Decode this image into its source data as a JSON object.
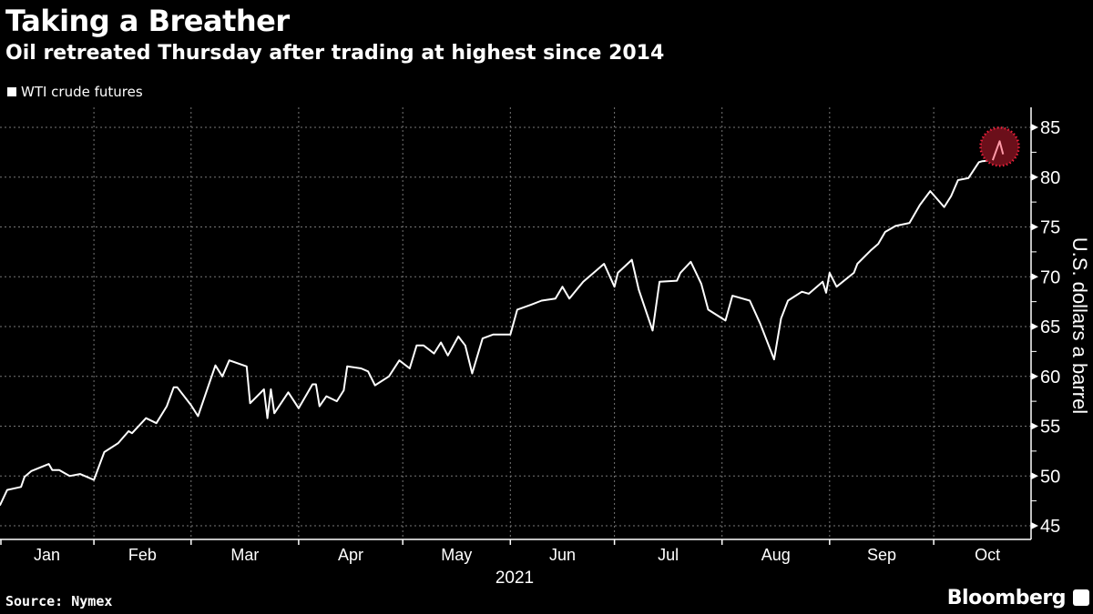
{
  "header": {
    "title": "Taking a Breather",
    "subtitle": "Oil retreated Thursday after trading at highest since 2014"
  },
  "footer": {
    "source": "Source: Nymex",
    "brand": "Bloomberg"
  },
  "colors": {
    "background": "#000000",
    "line": "#ffffff",
    "highlight_fill": "#6b0f1a",
    "highlight_border": "#e8203a",
    "highlight_line": "#ff9aa8"
  },
  "chart_data": {
    "type": "line",
    "title": "Taking a Breather",
    "subtitle": "Oil retreated Thursday after trading at highest since 2014",
    "xlabel": "2021",
    "ylabel": "U.S. dollars a barrel",
    "ylim": [
      45,
      85
    ],
    "yticks": [
      "45",
      "50",
      "55",
      "60",
      "65",
      "70",
      "75",
      "80",
      "85"
    ],
    "xticks": [
      "Jan",
      "Feb",
      "Mar",
      "Apr",
      "May",
      "Jun",
      "Jul",
      "Aug",
      "Sep",
      "Oct"
    ],
    "y_axis_side": "right",
    "grid": true,
    "legend_position": "top-left",
    "highlight": {
      "from": "2021-10-18",
      "to": "2021-10-21",
      "shape": "circle"
    },
    "series": [
      {
        "name": "WTI crude futures",
        "points": [
          [
            "2021-01-04",
            47.7
          ],
          [
            "2021-01-05",
            47.1
          ],
          [
            "2021-01-07",
            48.6
          ],
          [
            "2021-01-11",
            48.9
          ],
          [
            "2021-01-12",
            49.9
          ],
          [
            "2021-01-14",
            50.5
          ],
          [
            "2021-01-19",
            51.2
          ],
          [
            "2021-01-20",
            50.6
          ],
          [
            "2021-01-22",
            50.6
          ],
          [
            "2021-01-25",
            50.0
          ],
          [
            "2021-01-28",
            50.2
          ],
          [
            "2021-02-01",
            49.6
          ],
          [
            "2021-02-04",
            52.4
          ],
          [
            "2021-02-08",
            53.3
          ],
          [
            "2021-02-11",
            54.5
          ],
          [
            "2021-02-12",
            54.3
          ],
          [
            "2021-02-16",
            55.8
          ],
          [
            "2021-02-19",
            55.3
          ],
          [
            "2021-02-22",
            57.0
          ],
          [
            "2021-02-24",
            58.9
          ],
          [
            "2021-02-25",
            58.9
          ],
          [
            "2021-03-01",
            57.1
          ],
          [
            "2021-03-03",
            56.0
          ],
          [
            "2021-03-08",
            61.1
          ],
          [
            "2021-03-10",
            60.0
          ],
          [
            "2021-03-12",
            61.6
          ],
          [
            "2021-03-17",
            61.0
          ],
          [
            "2021-03-18",
            57.3
          ],
          [
            "2021-03-22",
            58.7
          ],
          [
            "2021-03-23",
            55.8
          ],
          [
            "2021-03-24",
            58.7
          ],
          [
            "2021-03-25",
            56.3
          ],
          [
            "2021-03-29",
            58.4
          ],
          [
            "2021-04-01",
            56.8
          ],
          [
            "2021-04-05",
            59.2
          ],
          [
            "2021-04-06",
            59.2
          ],
          [
            "2021-04-07",
            57.0
          ],
          [
            "2021-04-09",
            58.0
          ],
          [
            "2021-04-12",
            57.5
          ],
          [
            "2021-04-14",
            58.6
          ],
          [
            "2021-04-15",
            61.0
          ],
          [
            "2021-04-19",
            60.8
          ],
          [
            "2021-04-21",
            60.5
          ],
          [
            "2021-04-23",
            59.1
          ],
          [
            "2021-04-27",
            60.0
          ],
          [
            "2021-04-30",
            61.6
          ],
          [
            "2021-05-03",
            60.8
          ],
          [
            "2021-05-05",
            63.1
          ],
          [
            "2021-05-07",
            63.1
          ],
          [
            "2021-05-10",
            62.3
          ],
          [
            "2021-05-12",
            63.4
          ],
          [
            "2021-05-14",
            62.1
          ],
          [
            "2021-05-17",
            64.0
          ],
          [
            "2021-05-19",
            63.1
          ],
          [
            "2021-05-21",
            60.3
          ],
          [
            "2021-05-24",
            63.8
          ],
          [
            "2021-05-27",
            64.2
          ],
          [
            "2021-06-01",
            64.2
          ],
          [
            "2021-06-03",
            66.7
          ],
          [
            "2021-06-07",
            67.2
          ],
          [
            "2021-06-10",
            67.6
          ],
          [
            "2021-06-14",
            67.8
          ],
          [
            "2021-06-16",
            69.0
          ],
          [
            "2021-06-18",
            67.8
          ],
          [
            "2021-06-22",
            69.5
          ],
          [
            "2021-06-25",
            70.4
          ],
          [
            "2021-06-28",
            71.3
          ],
          [
            "2021-07-01",
            69.0
          ],
          [
            "2021-07-02",
            70.4
          ],
          [
            "2021-07-06",
            71.7
          ],
          [
            "2021-07-08",
            68.7
          ],
          [
            "2021-07-12",
            64.6
          ],
          [
            "2021-07-14",
            69.5
          ],
          [
            "2021-07-19",
            69.6
          ],
          [
            "2021-07-20",
            70.4
          ],
          [
            "2021-07-23",
            71.5
          ],
          [
            "2021-07-26",
            69.3
          ],
          [
            "2021-07-28",
            66.7
          ],
          [
            "2021-08-02",
            65.6
          ],
          [
            "2021-08-04",
            68.1
          ],
          [
            "2021-08-09",
            67.6
          ],
          [
            "2021-08-12",
            65.3
          ],
          [
            "2021-08-16",
            61.7
          ],
          [
            "2021-08-18",
            65.8
          ],
          [
            "2021-08-20",
            67.6
          ],
          [
            "2021-08-24",
            68.5
          ],
          [
            "2021-08-26",
            68.3
          ],
          [
            "2021-08-30",
            69.5
          ],
          [
            "2021-08-31",
            68.4
          ],
          [
            "2021-09-01",
            70.4
          ],
          [
            "2021-09-03",
            69.0
          ],
          [
            "2021-09-08",
            70.4
          ],
          [
            "2021-09-09",
            71.3
          ],
          [
            "2021-09-13",
            72.7
          ],
          [
            "2021-09-15",
            73.3
          ],
          [
            "2021-09-17",
            74.5
          ],
          [
            "2021-09-20",
            75.1
          ],
          [
            "2021-09-24",
            75.4
          ],
          [
            "2021-09-27",
            77.2
          ],
          [
            "2021-09-30",
            78.6
          ],
          [
            "2021-10-04",
            77.0
          ],
          [
            "2021-10-06",
            78.1
          ],
          [
            "2021-10-08",
            79.7
          ],
          [
            "2021-10-11",
            79.9
          ],
          [
            "2021-10-14",
            81.5
          ],
          [
            "2021-10-15",
            81.6
          ],
          [
            "2021-10-18",
            81.7
          ],
          [
            "2021-10-20",
            83.6
          ],
          [
            "2021-10-21",
            82.3
          ]
        ]
      }
    ]
  }
}
